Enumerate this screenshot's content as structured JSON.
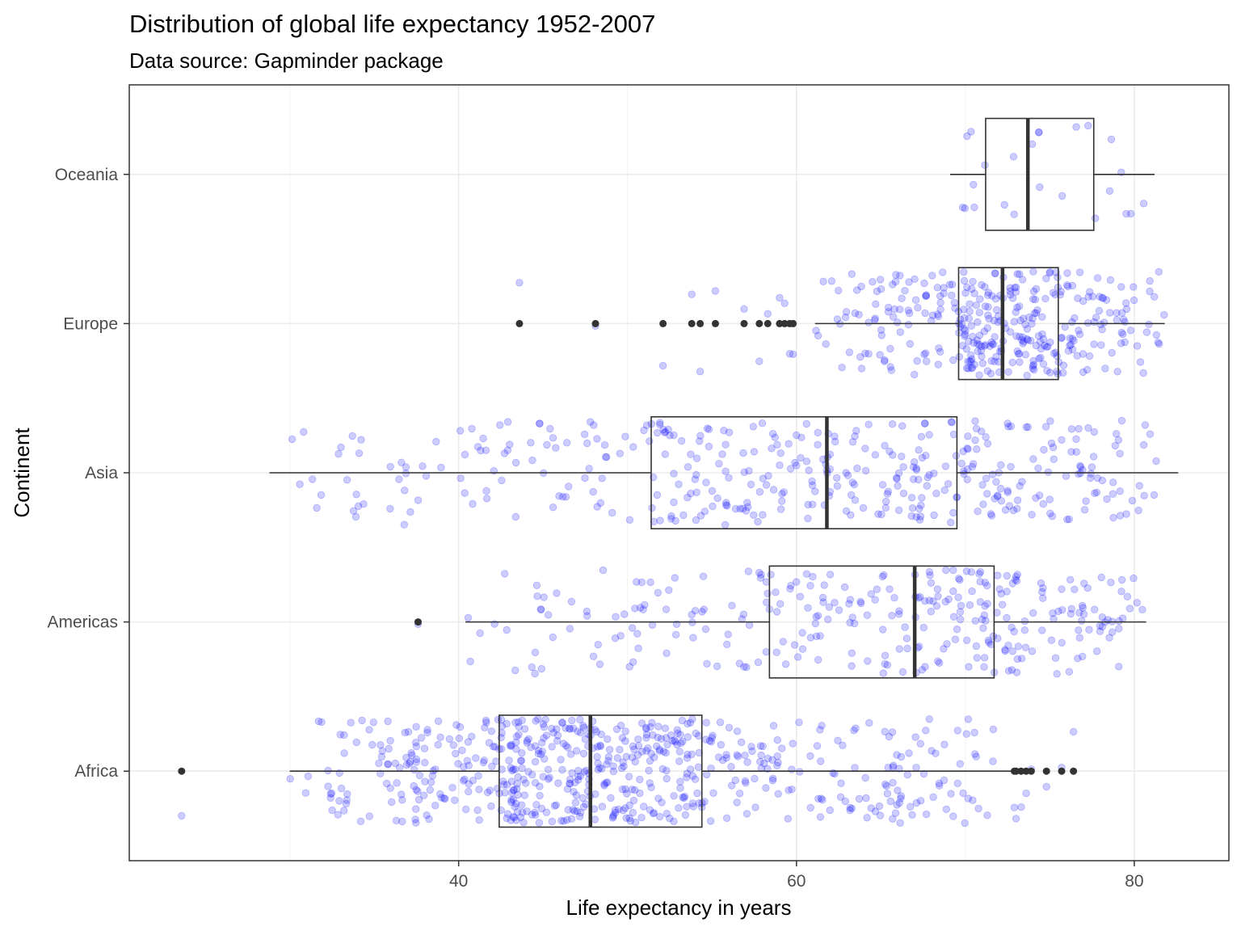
{
  "chart_data": {
    "type": "boxplot",
    "title": "Distribution of global life expectancy 1952-2007",
    "subtitle": "Data source: Gapminder package",
    "xlabel": "Life expectancy in years",
    "ylabel": "Continent",
    "xlim": [
      20.5,
      85.6
    ],
    "x_ticks": [
      40,
      60,
      80
    ],
    "grid": true,
    "categories": [
      "Africa",
      "Americas",
      "Asia",
      "Europe",
      "Oceania"
    ],
    "boxes": [
      {
        "name": "Africa",
        "min": 30.0,
        "q1": 42.4,
        "median": 47.8,
        "q3": 54.4,
        "max": 72.8,
        "n": 624,
        "outliers": [
          23.6,
          72.9,
          73.0,
          73.3,
          73.6,
          73.9,
          74.8,
          75.7,
          76.4
        ]
      },
      {
        "name": "Americas",
        "min": 40.4,
        "q1": 58.4,
        "median": 67.0,
        "q3": 71.7,
        "max": 80.7,
        "n": 300,
        "outliers": [
          37.6
        ]
      },
      {
        "name": "Asia",
        "min": 28.8,
        "q1": 51.4,
        "median": 61.8,
        "q3": 69.5,
        "max": 82.6,
        "n": 396,
        "outliers": []
      },
      {
        "name": "Europe",
        "min": 61.1,
        "q1": 69.6,
        "median": 72.2,
        "q3": 75.5,
        "max": 81.8,
        "n": 360,
        "outliers": [
          43.6,
          48.1,
          52.1,
          53.8,
          54.3,
          55.2,
          56.9,
          57.8,
          58.3,
          59.0,
          59.3,
          59.6,
          59.8
        ]
      },
      {
        "name": "Oceania",
        "min": 69.1,
        "q1": 71.2,
        "median": 73.7,
        "q3": 77.6,
        "max": 81.2,
        "n": 24,
        "outliers": []
      }
    ],
    "points": {
      "style": "jitter",
      "color": "#0000ff",
      "alpha": 0.2,
      "jitter_height": 0.35
    },
    "box_color": "#333333"
  }
}
